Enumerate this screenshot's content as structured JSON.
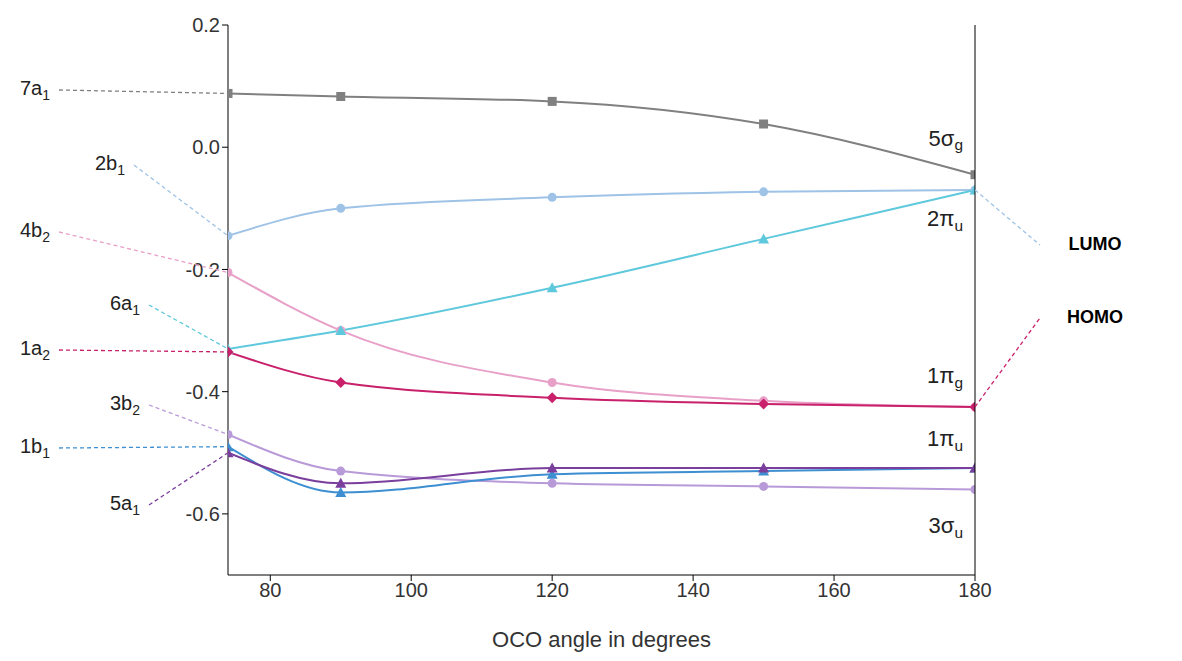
{
  "chart_data": {
    "type": "line",
    "x_label": "OCO angle in degrees",
    "x": [
      74,
      90,
      120,
      150,
      180
    ],
    "xlim": [
      74,
      180
    ],
    "xticks": [
      80,
      100,
      120,
      140,
      160,
      180
    ],
    "ylim": [
      -0.7,
      0.2
    ],
    "yticks": [
      0.2,
      {
        "value": 0,
        "label": "0.0"
      },
      -0.2,
      -0.4,
      -0.6
    ],
    "grid": false,
    "series": [
      {
        "name": "7a1",
        "end_label": "5σg",
        "color": "#808080",
        "marker": "square",
        "values": [
          0.088,
          0.083,
          0.075,
          0.038,
          -0.045
        ]
      },
      {
        "name": "2b1",
        "end_label": "2πu",
        "end_note": "LUMO",
        "color": "#9ec3e6",
        "marker": "circle",
        "values": [
          -0.145,
          -0.1,
          -0.082,
          -0.073,
          -0.07
        ]
      },
      {
        "name": "4b2",
        "color": "#e8a0c8",
        "marker": "circle",
        "values": [
          -0.205,
          -0.3,
          -0.385,
          -0.415,
          -0.425
        ]
      },
      {
        "name": "6a1",
        "color": "#5ec8dc",
        "marker": "triangle",
        "values": [
          -0.33,
          -0.3,
          -0.23,
          -0.15,
          -0.07
        ]
      },
      {
        "name": "1a2",
        "end_label": "1πg",
        "end_note": "HOMO",
        "color": "#c8206a",
        "marker": "diamond",
        "values": [
          -0.335,
          -0.385,
          -0.41,
          -0.42,
          -0.425
        ]
      },
      {
        "name": "3b2",
        "end_label": "3σu",
        "color": "#b89ad8",
        "marker": "circle",
        "values": [
          -0.47,
          -0.53,
          -0.55,
          -0.555,
          -0.56
        ]
      },
      {
        "name": "1b1",
        "end_label": "1πu",
        "color": "#3d8fd1",
        "marker": "triangle",
        "values": [
          -0.49,
          -0.565,
          -0.535,
          -0.53,
          -0.525
        ]
      },
      {
        "name": "5a1",
        "color": "#7a3e9d",
        "marker": "triangle",
        "values": [
          -0.5,
          -0.55,
          -0.525,
          -0.525,
          -0.525
        ]
      }
    ]
  }
}
